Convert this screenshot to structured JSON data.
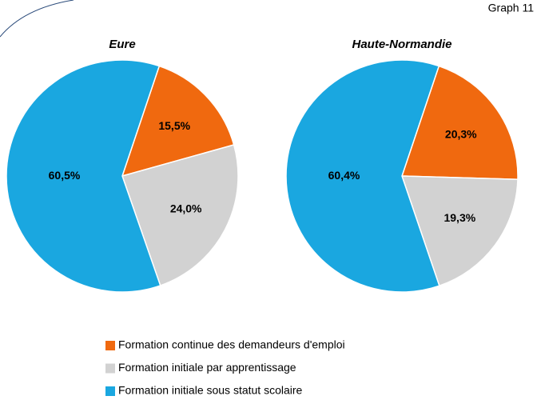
{
  "page": {
    "label": "Graph 11"
  },
  "legend": [
    {
      "name": "Formation continue des demandeurs d'emploi",
      "color": "#f0690f"
    },
    {
      "name": "Formation initiale par apprentissage",
      "color": "#d2d2d2"
    },
    {
      "name": "Formation initiale sous statut scolaire",
      "color": "#1aa7e0"
    }
  ],
  "chart_data": [
    {
      "type": "pie",
      "title": "Eure",
      "values": [
        15.5,
        24.0,
        60.5
      ],
      "value_labels": [
        "15,5%",
        "24,0%",
        "60,5%"
      ]
    },
    {
      "type": "pie",
      "title": "Haute-Normandie",
      "values": [
        20.3,
        19.3,
        60.4
      ],
      "value_labels": [
        "20,3%",
        "19,3%",
        "60,4%"
      ]
    }
  ]
}
